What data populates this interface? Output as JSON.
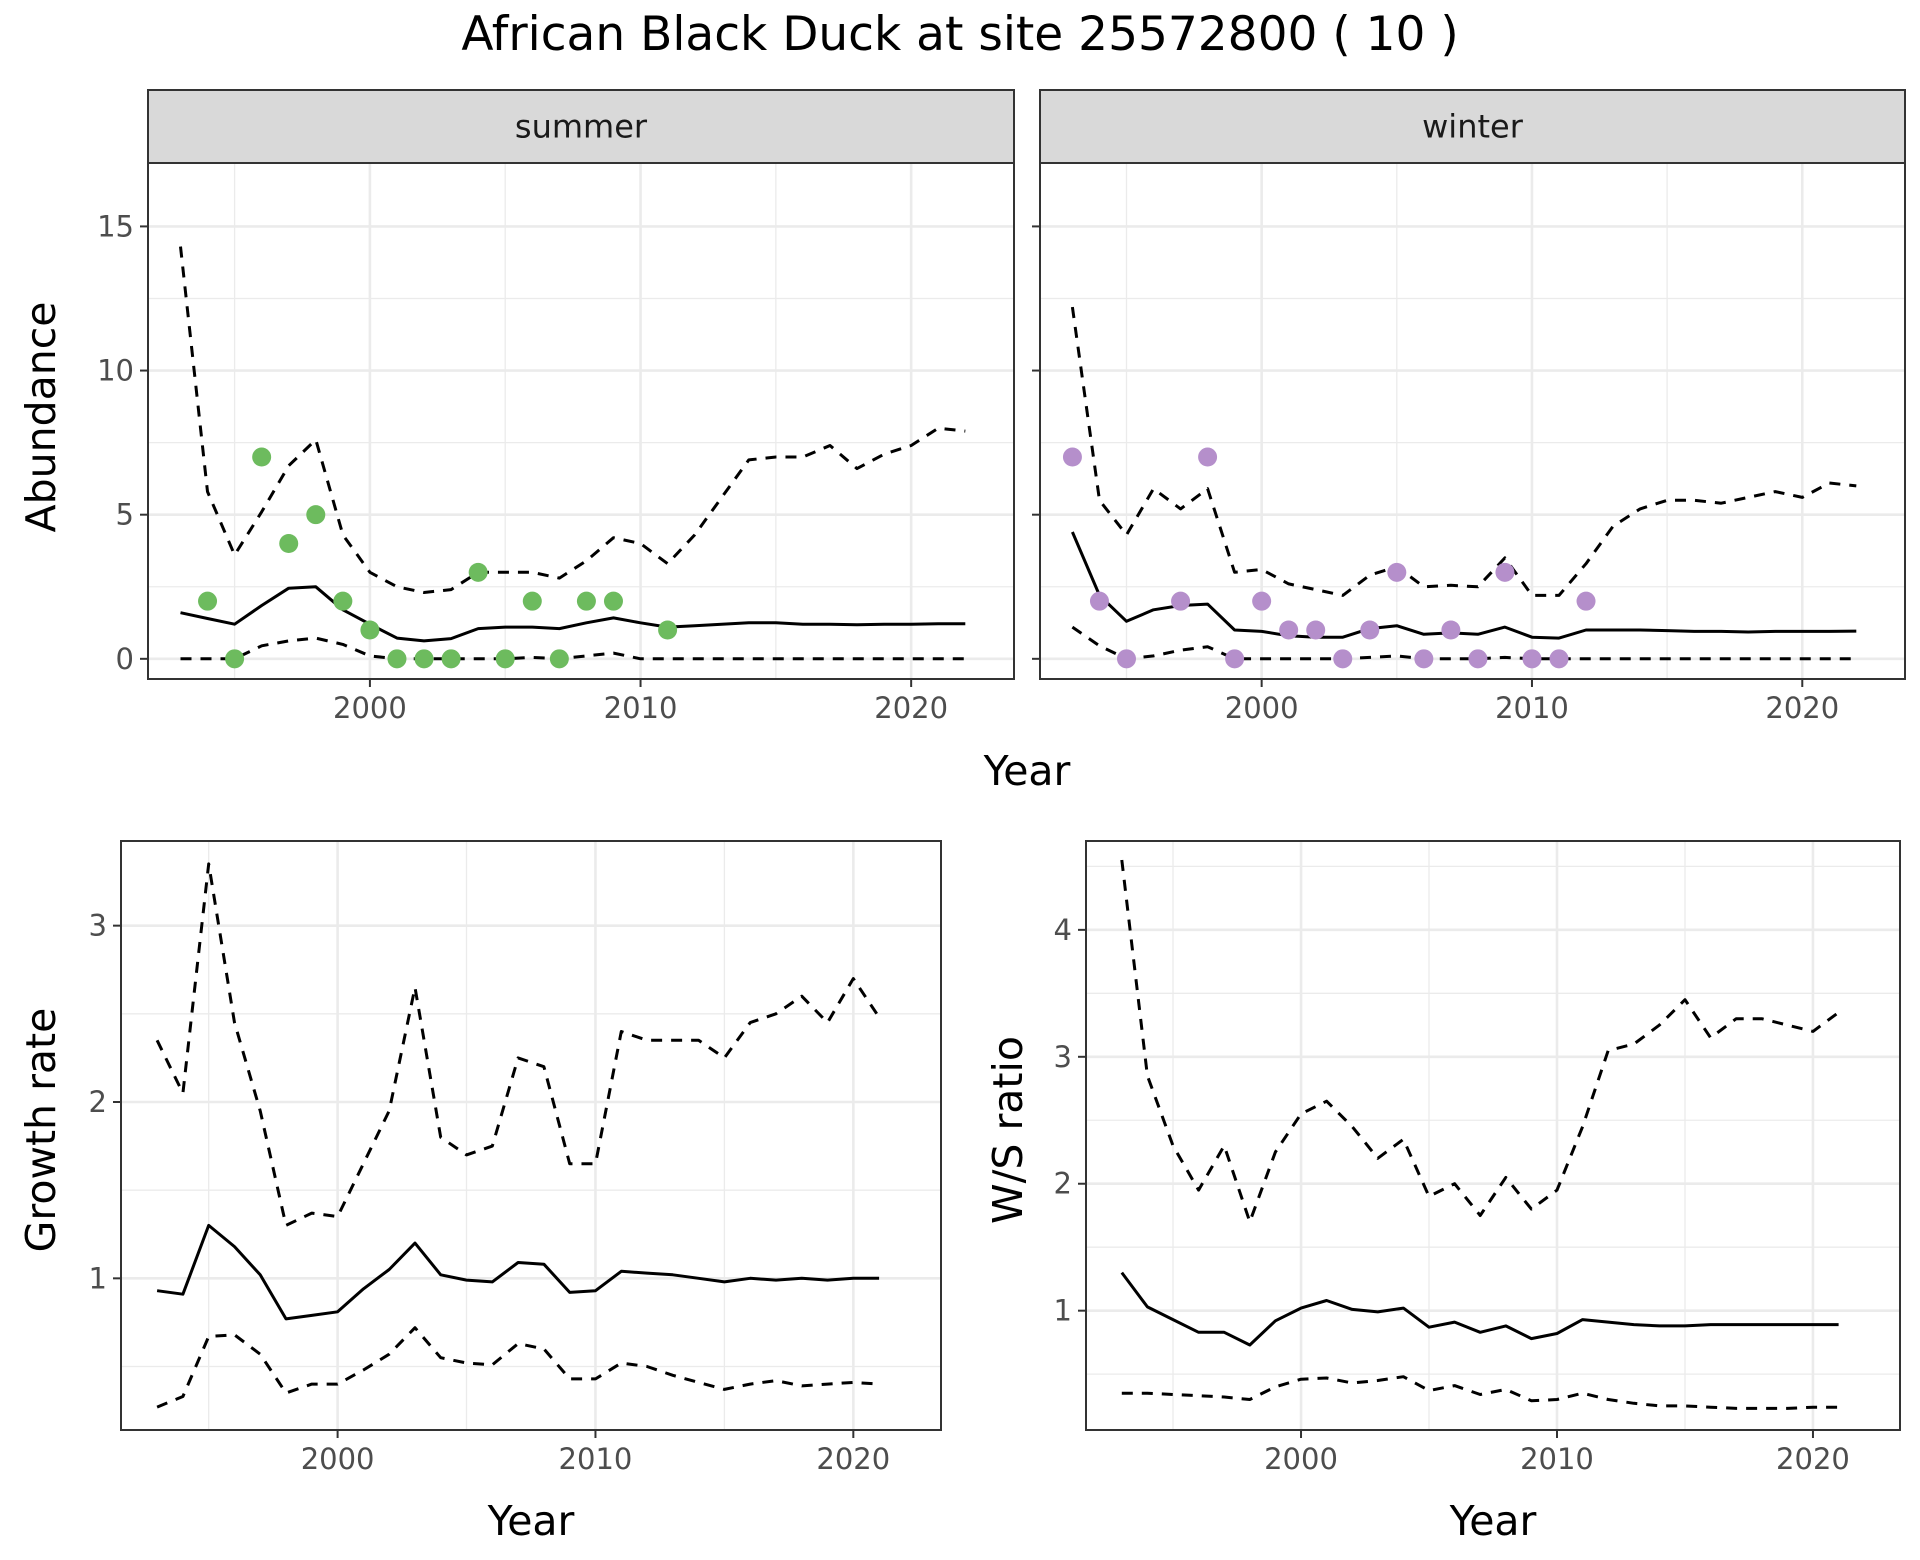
{
  "title": "African Black Duck at site 25572800 ( 10 )",
  "colors": {
    "summer_points": "#6dbb5e",
    "winter_points": "#b58fcb",
    "lines": "#000000"
  },
  "chart_data": [
    {
      "type": "line",
      "panel": "summer",
      "strip_label": "summer",
      "xlabel": "Year",
      "ylabel": "Abundance",
      "xlim": [
        1991.8,
        2023.8
      ],
      "ylim": [
        -0.7,
        17.2
      ],
      "xticks": [
        2000,
        2010,
        2020
      ],
      "yticks": [
        0,
        5,
        10,
        15
      ],
      "grid": true,
      "x": [
        1993,
        1994,
        1995,
        1996,
        1997,
        1998,
        1999,
        2000,
        2001,
        2002,
        2003,
        2004,
        2005,
        2006,
        2007,
        2008,
        2009,
        2010,
        2011,
        2012,
        2013,
        2014,
        2015,
        2016,
        2017,
        2018,
        2019,
        2020,
        2021,
        2022
      ],
      "series": [
        {
          "style": "solid",
          "values": [
            1.6,
            1.4,
            1.2,
            1.85,
            2.45,
            2.5,
            1.7,
            1.2,
            0.72,
            0.62,
            0.7,
            1.05,
            1.1,
            1.1,
            1.05,
            1.25,
            1.42,
            1.25,
            1.1,
            1.15,
            1.2,
            1.25,
            1.25,
            1.2,
            1.2,
            1.18,
            1.2,
            1.2,
            1.22,
            1.22
          ]
        },
        {
          "style": "dashed",
          "values": [
            14.3,
            5.8,
            3.6,
            5.1,
            6.7,
            7.6,
            4.3,
            3.0,
            2.5,
            2.3,
            2.4,
            3.0,
            3.0,
            3.0,
            2.8,
            3.4,
            4.2,
            4.0,
            3.3,
            4.3,
            5.6,
            6.9,
            7.0,
            7.0,
            7.4,
            6.6,
            7.1,
            7.4,
            8.0,
            7.9
          ]
        },
        {
          "style": "dashed",
          "values": [
            0,
            0,
            0,
            0.45,
            0.62,
            0.72,
            0.5,
            0.1,
            0,
            0,
            0,
            0,
            0,
            0.05,
            0,
            0.1,
            0.2,
            0,
            0,
            0,
            0,
            0,
            0,
            0,
            0,
            0,
            0,
            0,
            0,
            0
          ]
        }
      ],
      "points": [
        {
          "x": 1994,
          "y": 2
        },
        {
          "x": 1995,
          "y": 0
        },
        {
          "x": 1996,
          "y": 7
        },
        {
          "x": 1997,
          "y": 4
        },
        {
          "x": 1998,
          "y": 5
        },
        {
          "x": 1999,
          "y": 2
        },
        {
          "x": 2000,
          "y": 1
        },
        {
          "x": 2001,
          "y": 0
        },
        {
          "x": 2002,
          "y": 0
        },
        {
          "x": 2003,
          "y": 0
        },
        {
          "x": 2004,
          "y": 3
        },
        {
          "x": 2005,
          "y": 0
        },
        {
          "x": 2006,
          "y": 2
        },
        {
          "x": 2007,
          "y": 0
        },
        {
          "x": 2008,
          "y": 2
        },
        {
          "x": 2009,
          "y": 2
        },
        {
          "x": 2011,
          "y": 1
        }
      ]
    },
    {
      "type": "line",
      "panel": "winter",
      "strip_label": "winter",
      "xlabel": "Year",
      "ylabel": "Abundance",
      "xlim": [
        1991.8,
        2023.8
      ],
      "ylim": [
        -0.7,
        17.2
      ],
      "xticks": [
        2000,
        2010,
        2020
      ],
      "yticks": [
        0,
        5,
        10,
        15
      ],
      "grid": true,
      "x": [
        1993,
        1994,
        1995,
        1996,
        1997,
        1998,
        1999,
        2000,
        2001,
        2002,
        2003,
        2004,
        2005,
        2006,
        2007,
        2008,
        2009,
        2010,
        2011,
        2012,
        2013,
        2014,
        2015,
        2016,
        2017,
        2018,
        2019,
        2020,
        2021,
        2022
      ],
      "series": [
        {
          "style": "solid",
          "values": [
            4.4,
            2.2,
            1.3,
            1.7,
            1.85,
            1.9,
            1.0,
            0.95,
            0.8,
            0.75,
            0.75,
            1.05,
            1.15,
            0.85,
            0.9,
            0.85,
            1.1,
            0.75,
            0.72,
            1.0,
            1.0,
            1.0,
            0.98,
            0.95,
            0.95,
            0.93,
            0.95,
            0.95,
            0.95,
            0.96
          ]
        },
        {
          "style": "dashed",
          "values": [
            12.2,
            5.5,
            4.3,
            5.9,
            5.2,
            5.9,
            3.0,
            3.1,
            2.6,
            2.4,
            2.2,
            2.9,
            3.2,
            2.5,
            2.55,
            2.5,
            3.5,
            2.2,
            2.2,
            3.3,
            4.6,
            5.2,
            5.5,
            5.5,
            5.4,
            5.6,
            5.8,
            5.6,
            6.1,
            6.0
          ]
        },
        {
          "style": "dashed",
          "values": [
            1.1,
            0.45,
            0,
            0.1,
            0.3,
            0.42,
            0,
            0,
            0,
            0,
            0,
            0.05,
            0.1,
            0,
            0,
            0,
            0.05,
            0,
            0,
            0,
            0,
            0,
            0,
            0,
            0,
            0,
            0,
            0,
            0,
            0
          ]
        }
      ],
      "points": [
        {
          "x": 1993,
          "y": 7
        },
        {
          "x": 1994,
          "y": 2
        },
        {
          "x": 1995,
          "y": 0
        },
        {
          "x": 1997,
          "y": 2
        },
        {
          "x": 1998,
          "y": 7
        },
        {
          "x": 1999,
          "y": 0
        },
        {
          "x": 2000,
          "y": 2
        },
        {
          "x": 2001,
          "y": 1
        },
        {
          "x": 2002,
          "y": 1
        },
        {
          "x": 2003,
          "y": 0
        },
        {
          "x": 2004,
          "y": 1
        },
        {
          "x": 2005,
          "y": 3
        },
        {
          "x": 2006,
          "y": 0
        },
        {
          "x": 2007,
          "y": 1
        },
        {
          "x": 2008,
          "y": 0
        },
        {
          "x": 2009,
          "y": 3
        },
        {
          "x": 2010,
          "y": 0
        },
        {
          "x": 2011,
          "y": 0
        },
        {
          "x": 2012,
          "y": 2
        }
      ]
    },
    {
      "type": "line",
      "panel": "growth",
      "xlabel": "Year",
      "ylabel": "Growth rate",
      "xlim": [
        1991.6,
        2023.4
      ],
      "ylim": [
        0.14,
        3.48
      ],
      "xticks": [
        2000,
        2010,
        2020
      ],
      "yticks": [
        1,
        2,
        3
      ],
      "grid": true,
      "x": [
        1993,
        1994,
        1995,
        1996,
        1997,
        1998,
        1999,
        2000,
        2001,
        2002,
        2003,
        2004,
        2005,
        2006,
        2007,
        2008,
        2009,
        2010,
        2011,
        2012,
        2013,
        2014,
        2015,
        2016,
        2017,
        2018,
        2019,
        2020,
        2021
      ],
      "series": [
        {
          "style": "solid",
          "values": [
            0.93,
            0.91,
            1.3,
            1.18,
            1.02,
            0.77,
            0.79,
            0.81,
            0.94,
            1.05,
            1.2,
            1.02,
            0.99,
            0.98,
            1.09,
            1.08,
            0.92,
            0.93,
            1.04,
            1.03,
            1.02,
            1.0,
            0.98,
            1.0,
            0.99,
            1.0,
            0.99,
            1.0,
            1.0
          ]
        },
        {
          "style": "dashed",
          "values": [
            2.35,
            2.05,
            3.35,
            2.45,
            1.95,
            1.3,
            1.37,
            1.35,
            1.65,
            1.95,
            2.65,
            1.8,
            1.7,
            1.75,
            2.25,
            2.2,
            1.65,
            1.65,
            2.4,
            2.35,
            2.35,
            2.35,
            2.25,
            2.45,
            2.5,
            2.6,
            2.45,
            2.7,
            2.48
          ]
        },
        {
          "style": "dashed",
          "values": [
            0.27,
            0.33,
            0.67,
            0.68,
            0.57,
            0.35,
            0.4,
            0.4,
            0.48,
            0.57,
            0.72,
            0.55,
            0.52,
            0.51,
            0.63,
            0.6,
            0.43,
            0.43,
            0.52,
            0.5,
            0.45,
            0.41,
            0.37,
            0.4,
            0.42,
            0.39,
            0.4,
            0.41,
            0.4
          ]
        }
      ]
    },
    {
      "type": "line",
      "panel": "ws_ratio",
      "xlabel": "Year",
      "ylabel": "W/S ratio",
      "xlim": [
        1991.6,
        2023.4
      ],
      "ylim": [
        0.06,
        4.7
      ],
      "xticks": [
        2000,
        2010,
        2020
      ],
      "yticks": [
        1,
        2,
        3,
        4
      ],
      "grid": true,
      "x": [
        1993,
        1994,
        1995,
        1996,
        1997,
        1998,
        1999,
        2000,
        2001,
        2002,
        2003,
        2004,
        2005,
        2006,
        2007,
        2008,
        2009,
        2010,
        2011,
        2012,
        2013,
        2014,
        2015,
        2016,
        2017,
        2018,
        2019,
        2020,
        2021
      ],
      "series": [
        {
          "style": "solid",
          "values": [
            1.3,
            1.03,
            0.93,
            0.83,
            0.83,
            0.73,
            0.92,
            1.02,
            1.08,
            1.01,
            0.99,
            1.02,
            0.87,
            0.91,
            0.83,
            0.88,
            0.78,
            0.82,
            0.93,
            0.91,
            0.89,
            0.88,
            0.88,
            0.89,
            0.89,
            0.89,
            0.89,
            0.89,
            0.89
          ]
        },
        {
          "style": "dashed",
          "values": [
            4.55,
            2.85,
            2.3,
            1.95,
            2.3,
            1.7,
            2.25,
            2.55,
            2.65,
            2.45,
            2.2,
            2.35,
            1.9,
            2.0,
            1.75,
            2.05,
            1.8,
            1.95,
            2.45,
            3.05,
            3.1,
            3.25,
            3.45,
            3.15,
            3.3,
            3.3,
            3.25,
            3.2,
            3.35
          ]
        },
        {
          "style": "dashed",
          "values": [
            0.35,
            0.35,
            0.34,
            0.33,
            0.32,
            0.3,
            0.4,
            0.46,
            0.47,
            0.43,
            0.45,
            0.48,
            0.37,
            0.41,
            0.34,
            0.38,
            0.29,
            0.3,
            0.35,
            0.3,
            0.27,
            0.25,
            0.25,
            0.24,
            0.23,
            0.23,
            0.23,
            0.24,
            0.24
          ]
        }
      ]
    }
  ]
}
